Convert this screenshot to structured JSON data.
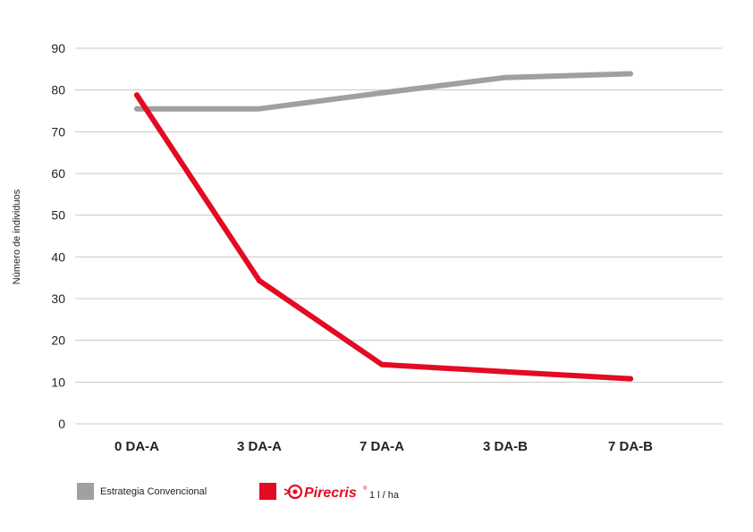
{
  "chart_data": {
    "type": "line",
    "ylabel": "Número de individuos",
    "xlabel": "",
    "ylim": [
      0,
      90
    ],
    "yticks": [
      0,
      10,
      20,
      30,
      40,
      50,
      60,
      70,
      80,
      90
    ],
    "grid": true,
    "legend_position": "bottom-left",
    "categories": [
      "0 DA-A",
      "3 DA-A",
      "7 DA-A",
      "3 DA-B",
      "7 DA-B"
    ],
    "series": [
      {
        "name": "Estrategia Convencional",
        "color": "#a0a0a0",
        "values": [
          75.5,
          75.5,
          79.3,
          83,
          83.9
        ]
      },
      {
        "name": "Pirecris",
        "dose": "1 l / ha",
        "color": "#e30a23",
        "values": [
          78.8,
          34.3,
          14.2,
          12.5,
          10.8
        ]
      }
    ],
    "brand_icon": "pirecris-logo-icon"
  }
}
